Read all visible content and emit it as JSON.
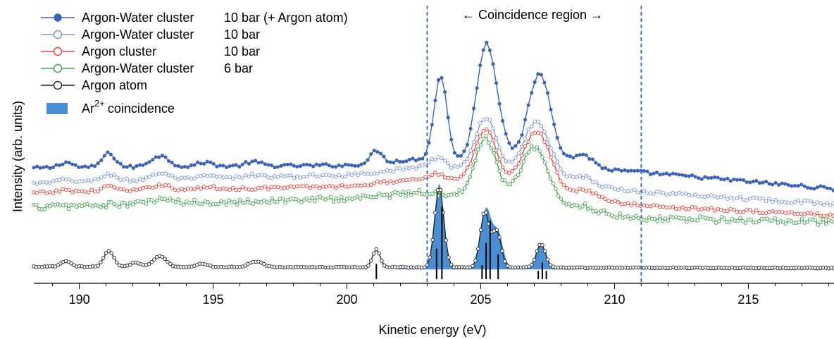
{
  "chart_data": {
    "type": "line",
    "title": "",
    "xlabel": "Kinetic energy (eV)",
    "ylabel": "Intensity (arb. units)",
    "xlim": [
      188.3,
      218.2
    ],
    "ylim": [
      0,
      1
    ],
    "x_ticks": [
      190,
      195,
      200,
      205,
      210,
      215
    ],
    "x_tick_labels": [
      "190",
      "195",
      "200",
      "205",
      "210",
      "215"
    ],
    "grid": false,
    "legend_position": "top-left",
    "annotation": "← Coincidence region →",
    "coincidence_region": [
      203.0,
      211.0
    ],
    "series": [
      {
        "name": "Argon-Water cluster",
        "pressure": "10 bar (+ Argon atom)",
        "color": "#3a62b8",
        "marker": "filled-circle",
        "baseline": [
          [
            188.3,
            0.415
          ],
          [
            200,
            0.425
          ],
          [
            203,
            0.45
          ],
          [
            211,
            0.4
          ],
          [
            218.2,
            0.34
          ]
        ],
        "peaks": [
          [
            189.5,
            0.02,
            0.25
          ],
          [
            191.1,
            0.05,
            0.25
          ],
          [
            193.0,
            0.04,
            0.35
          ],
          [
            194.7,
            0.015,
            0.3
          ],
          [
            196.5,
            0.015,
            0.3
          ],
          [
            201.1,
            0.045,
            0.2
          ],
          [
            203.5,
            0.3,
            0.24
          ],
          [
            205.2,
            0.42,
            0.36
          ],
          [
            205.8,
            0.06,
            0.3
          ],
          [
            207.2,
            0.33,
            0.44
          ],
          [
            208.8,
            0.05,
            0.4
          ]
        ],
        "noise": 0.006,
        "marker_step": 0.12
      },
      {
        "name": "Argon-Water cluster",
        "pressure": "10 bar",
        "color": "#7d96d6",
        "marker": "open-circle",
        "baseline": [
          [
            188.3,
            0.36
          ],
          [
            200,
            0.39
          ],
          [
            203,
            0.42
          ],
          [
            211,
            0.33
          ],
          [
            218.2,
            0.285
          ]
        ],
        "peaks": [
          [
            189.5,
            0.01,
            0.3
          ],
          [
            191.1,
            0.025,
            0.3
          ],
          [
            193.0,
            0.025,
            0.35
          ],
          [
            194.8,
            0.01,
            0.3
          ],
          [
            196.5,
            0.01,
            0.3
          ],
          [
            203.4,
            0.035,
            0.3
          ],
          [
            205.2,
            0.2,
            0.42
          ],
          [
            207.1,
            0.21,
            0.5
          ],
          [
            208.8,
            0.03,
            0.4
          ]
        ],
        "noise": 0.006,
        "marker_step": 0.12
      },
      {
        "name": "Argon cluster",
        "pressure": "10 bar",
        "color": "#e5433a",
        "marker": "open-circle",
        "baseline": [
          [
            188.3,
            0.325
          ],
          [
            200,
            0.35
          ],
          [
            203,
            0.38
          ],
          [
            211,
            0.28
          ],
          [
            218.2,
            0.245
          ]
        ],
        "peaks": [
          [
            189.5,
            0.008,
            0.3
          ],
          [
            191.1,
            0.018,
            0.3
          ],
          [
            193.0,
            0.02,
            0.35
          ],
          [
            194.8,
            0.008,
            0.3
          ],
          [
            203.4,
            0.02,
            0.3
          ],
          [
            205.2,
            0.2,
            0.42
          ],
          [
            207.1,
            0.22,
            0.52
          ],
          [
            208.9,
            0.03,
            0.4
          ]
        ],
        "noise": 0.006,
        "marker_step": 0.12
      },
      {
        "name": "Argon-Water cluster",
        "pressure": "6 bar",
        "color": "#3ea34a",
        "marker": "open-circle",
        "baseline": [
          [
            188.3,
            0.275
          ],
          [
            200,
            0.305
          ],
          [
            203,
            0.33
          ],
          [
            211,
            0.235
          ],
          [
            218.2,
            0.22
          ]
        ],
        "peaks": [
          [
            193.0,
            0.015,
            0.4
          ],
          [
            205.2,
            0.22,
            0.4
          ],
          [
            207.0,
            0.21,
            0.5
          ],
          [
            208.8,
            0.02,
            0.4
          ]
        ],
        "noise": 0.011,
        "marker_step": 0.1
      },
      {
        "name": "Argon atom",
        "pressure": "",
        "color": "#222222",
        "marker": "open-circle",
        "baseline": [
          [
            188.3,
            0.06
          ],
          [
            218.2,
            0.055
          ]
        ],
        "peaks": [
          [
            189.5,
            0.02,
            0.18
          ],
          [
            191.1,
            0.058,
            0.18
          ],
          [
            192.1,
            0.015,
            0.2
          ],
          [
            193.0,
            0.04,
            0.24
          ],
          [
            194.6,
            0.012,
            0.2
          ],
          [
            196.6,
            0.02,
            0.26
          ],
          [
            201.1,
            0.065,
            0.14
          ],
          [
            203.45,
            0.29,
            0.17
          ],
          [
            205.15,
            0.2,
            0.17
          ],
          [
            205.6,
            0.13,
            0.16
          ],
          [
            207.25,
            0.085,
            0.17
          ]
        ],
        "noise": 0.0015,
        "marker_step": 0.1
      }
    ],
    "coincidence": {
      "name": "Ar",
      "name_superscript": "2+",
      "name_suffix": "coincidence",
      "color": "#4a8fd6",
      "x_range": [
        203.0,
        208.7
      ],
      "peaks": [
        [
          203.45,
          0.3,
          0.17
        ],
        [
          205.2,
          0.21,
          0.2
        ],
        [
          205.65,
          0.12,
          0.18
        ],
        [
          207.25,
          0.085,
          0.18
        ]
      ],
      "tail_line_x": [
        201.9,
        208.7
      ],
      "tail_line_y": 0.052
    },
    "stick_lines": [
      {
        "x": 201.1,
        "height": 0.055
      },
      {
        "x": 203.35,
        "height": 0.11
      },
      {
        "x": 203.55,
        "height": 0.26
      },
      {
        "x": 205.05,
        "height": 0.05
      },
      {
        "x": 205.2,
        "height": 0.13
      },
      {
        "x": 205.35,
        "height": 0.21
      },
      {
        "x": 205.65,
        "height": 0.09
      },
      {
        "x": 207.15,
        "height": 0.03
      },
      {
        "x": 207.3,
        "height": 0.06
      },
      {
        "x": 207.45,
        "height": 0.03
      }
    ],
    "colors": {
      "region_line": "#3d6fd1",
      "axis": "#000000"
    }
  }
}
